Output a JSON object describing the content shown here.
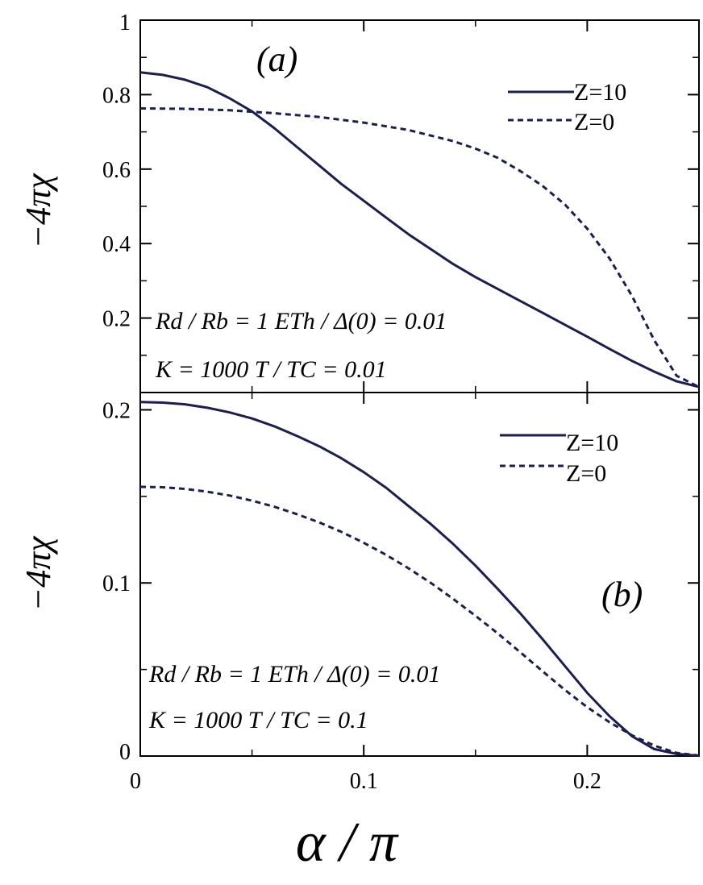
{
  "chart_data": [
    {
      "type": "line",
      "panel_label": "(a)",
      "ylabel": "−4πχ",
      "xlabel": "",
      "xlim": [
        0,
        0.25
      ],
      "ylim": [
        0,
        1
      ],
      "ytick_labels": [
        "0.2",
        "0.4",
        "0.6",
        "0.8",
        "1"
      ],
      "ytick_values": [
        0.2,
        0.4,
        0.6,
        0.8,
        1
      ],
      "grid": false,
      "legend": "top-right",
      "annotations": [
        "Rd / Rb = 1    ETh / Δ(0) = 0.01",
        "K = 1000    T / TC = 0.01"
      ],
      "series": [
        {
          "name": "Z=10",
          "style": "solid",
          "color": "#1a1f4d",
          "x": [
            0,
            0.01,
            0.02,
            0.03,
            0.04,
            0.05,
            0.06,
            0.07,
            0.08,
            0.09,
            0.1,
            0.11,
            0.12,
            0.13,
            0.14,
            0.15,
            0.16,
            0.17,
            0.18,
            0.19,
            0.2,
            0.21,
            0.22,
            0.23,
            0.24,
            0.25
          ],
          "y": [
            0.86,
            0.853,
            0.84,
            0.82,
            0.79,
            0.755,
            0.71,
            0.66,
            0.61,
            0.56,
            0.515,
            0.47,
            0.425,
            0.385,
            0.345,
            0.31,
            0.278,
            0.246,
            0.214,
            0.182,
            0.15,
            0.117,
            0.085,
            0.056,
            0.03,
            0.015
          ]
        },
        {
          "name": "Z=0",
          "style": "dashed",
          "color": "#1a1f4d",
          "x": [
            0,
            0.02,
            0.04,
            0.06,
            0.08,
            0.1,
            0.12,
            0.14,
            0.15,
            0.16,
            0.17,
            0.18,
            0.19,
            0.2,
            0.21,
            0.22,
            0.23,
            0.24,
            0.25
          ],
          "y": [
            0.763,
            0.762,
            0.758,
            0.75,
            0.74,
            0.725,
            0.705,
            0.675,
            0.655,
            0.63,
            0.595,
            0.555,
            0.505,
            0.44,
            0.36,
            0.26,
            0.14,
            0.045,
            0.015
          ]
        }
      ]
    },
    {
      "type": "line",
      "panel_label": "(b)",
      "ylabel": "−4πχ",
      "xlabel": "α / π",
      "xlim": [
        0,
        0.25
      ],
      "ylim": [
        0,
        0.21
      ],
      "xtick_labels": [
        "0",
        "0.1",
        "0.2"
      ],
      "xtick_values": [
        0,
        0.1,
        0.2
      ],
      "ytick_labels": [
        "0",
        "0.1",
        "0.2"
      ],
      "ytick_values": [
        0,
        0.1,
        0.2
      ],
      "grid": false,
      "legend": "top-right",
      "annotations": [
        "Rd / Rb = 1    ETh / Δ(0) = 0.01",
        "K = 1000    T / TC = 0.1"
      ],
      "series": [
        {
          "name": "Z=10",
          "style": "solid",
          "color": "#1a1f4d",
          "x": [
            0,
            0.01,
            0.02,
            0.03,
            0.04,
            0.05,
            0.06,
            0.07,
            0.08,
            0.09,
            0.1,
            0.11,
            0.12,
            0.13,
            0.14,
            0.15,
            0.16,
            0.17,
            0.18,
            0.19,
            0.2,
            0.21,
            0.22,
            0.23,
            0.24,
            0.25
          ],
          "y": [
            0.2045,
            0.2042,
            0.2032,
            0.2012,
            0.1985,
            0.195,
            0.1905,
            0.185,
            0.179,
            0.172,
            0.164,
            0.155,
            0.1445,
            0.134,
            0.1225,
            0.11,
            0.0965,
            0.0825,
            0.0675,
            0.052,
            0.0365,
            0.023,
            0.0115,
            0.004,
            0.0012,
            0.0002
          ]
        },
        {
          "name": "Z=0",
          "style": "dashed",
          "color": "#1a1f4d",
          "x": [
            0,
            0.01,
            0.02,
            0.03,
            0.04,
            0.05,
            0.06,
            0.07,
            0.08,
            0.09,
            0.1,
            0.11,
            0.12,
            0.13,
            0.14,
            0.15,
            0.16,
            0.17,
            0.18,
            0.19,
            0.2,
            0.21,
            0.22,
            0.23,
            0.24,
            0.25
          ],
          "y": [
            0.1555,
            0.1553,
            0.1543,
            0.1527,
            0.1505,
            0.1475,
            0.144,
            0.1398,
            0.135,
            0.1295,
            0.1232,
            0.1162,
            0.1085,
            0.1,
            0.0908,
            0.081,
            0.0708,
            0.06,
            0.049,
            0.0382,
            0.0282,
            0.0195,
            0.012,
            0.006,
            0.0018,
            0.0003
          ]
        }
      ]
    }
  ]
}
